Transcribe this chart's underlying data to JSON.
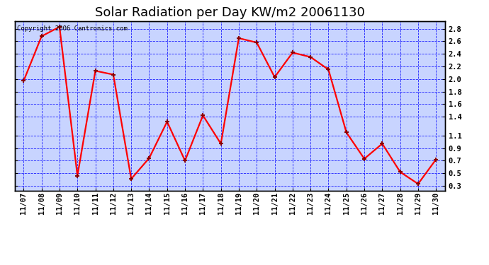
{
  "title": "Solar Radiation per Day KW/m2 20061130",
  "copyright_text": "Copyright 2006 Cantronics.com",
  "dates": [
    "11/07",
    "11/08",
    "11/09",
    "11/10",
    "11/11",
    "11/12",
    "11/13",
    "11/14",
    "11/15",
    "11/16",
    "11/17",
    "11/18",
    "11/19",
    "11/20",
    "11/21",
    "11/22",
    "11/23",
    "11/24",
    "11/25",
    "11/26",
    "11/27",
    "11/28",
    "11/29",
    "11/30"
  ],
  "values": [
    1.97,
    2.68,
    2.83,
    0.46,
    2.13,
    2.07,
    0.41,
    0.74,
    1.32,
    0.7,
    1.42,
    0.97,
    2.65,
    2.58,
    2.03,
    2.42,
    2.35,
    2.15,
    1.15,
    0.73,
    0.97,
    0.52,
    0.33,
    0.72
  ],
  "line_color": "red",
  "marker_color": "darkred",
  "plot_bg_color": "#c8d4ff",
  "grid_color": "blue",
  "y_ticks": [
    0.3,
    0.5,
    0.7,
    0.9,
    1.1,
    1.4,
    1.6,
    1.8,
    2.0,
    2.2,
    2.4,
    2.6,
    2.8
  ],
  "ylim": [
    0.22,
    2.92
  ],
  "title_fontsize": 13,
  "tick_fontsize": 7.5,
  "copyright_fontsize": 6.5,
  "linewidth": 1.6,
  "markersize": 5
}
